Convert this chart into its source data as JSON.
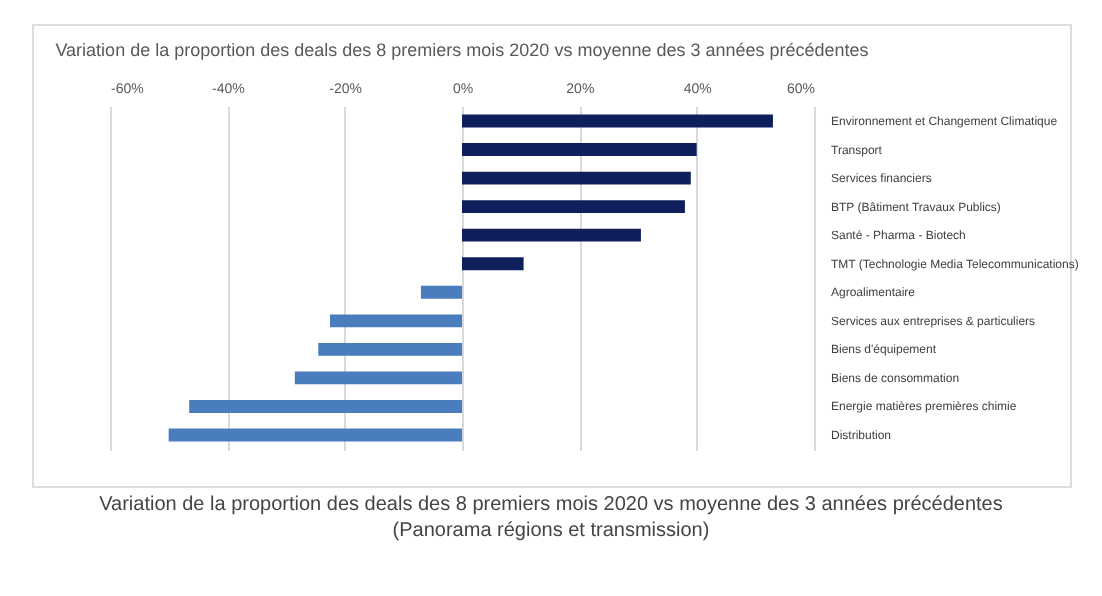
{
  "chart_data": {
    "type": "bar",
    "orientation": "horizontal",
    "title": "Variation de la proportion des deals des 8 premiers mois 2020 vs moyenne des 3 années précédentes",
    "categories": [
      "Environnement et Changement Climatique",
      "Transport",
      "Services financiers",
      "BTP (Bâtiment Travaux Publics)",
      "Santé - Pharma - Biotech",
      "TMT (Technologie Media Telecommunications)",
      "Agroalimentaire",
      "Services aux entreprises & particuliers",
      "Biens d'équipement",
      "Biens de consommation",
      "Energie matières premières chimie",
      "Distribution"
    ],
    "values": [
      53,
      40,
      39,
      38,
      30.5,
      10.5,
      -7,
      -22.5,
      -24.5,
      -28.5,
      -46.5,
      -50
    ],
    "colors": [
      "#0e1f5b",
      "#0e1f5b",
      "#0e1f5b",
      "#0e1f5b",
      "#0e1f5b",
      "#0e1f5b",
      "#4a7dbd",
      "#4a7dbd",
      "#4a7dbd",
      "#4a7dbd",
      "#4a7dbd",
      "#4a7dbd"
    ],
    "xlim": [
      -60,
      60
    ],
    "xticks": [
      {
        "value": -60,
        "label": "-60%"
      },
      {
        "value": -40,
        "label": "-40%"
      },
      {
        "value": -20,
        "label": "-20%"
      },
      {
        "value": 0,
        "label": "0%"
      },
      {
        "value": 20,
        "label": "20%"
      },
      {
        "value": 40,
        "label": "40%"
      },
      {
        "value": 60,
        "label": "60%"
      }
    ],
    "grid": "x",
    "annotations": [
      "Variation de la proportion des deals des 8 premiers mois 2020 vs moyenne des 3 années précédentes",
      "(Panorama régions et transmission)"
    ]
  }
}
